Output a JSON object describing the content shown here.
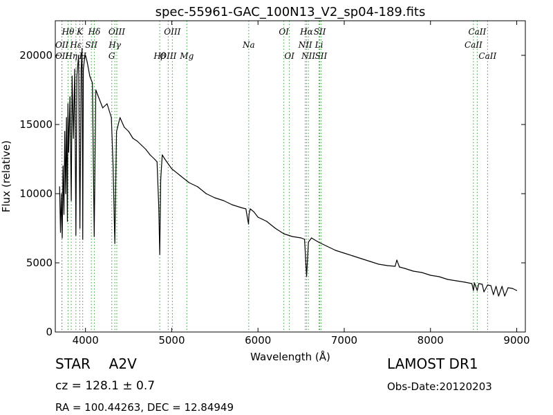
{
  "chart_data": {
    "type": "line",
    "title": "spec-55961-GAC_100N13_V2_sp04-189.fits",
    "xlabel": "Wavelength (Å)",
    "ylabel": "Flux (relative)",
    "xlim": [
      3650,
      9100
    ],
    "ylim": [
      0,
      22500
    ],
    "x_ticks": [
      4000,
      5000,
      6000,
      7000,
      8000,
      9000
    ],
    "y_ticks": [
      0,
      5000,
      10000,
      15000,
      20000
    ],
    "grid": false,
    "series": [
      {
        "color": "#000000",
        "x": [
          3700,
          3710,
          3720,
          3730,
          3740,
          3750,
          3760,
          3770,
          3780,
          3790,
          3797,
          3805,
          3820,
          3835,
          3845,
          3860,
          3875,
          3889,
          3900,
          3920,
          3935,
          3950,
          3960,
          3968,
          3975,
          3990,
          4000,
          4020,
          4050,
          4080,
          4101,
          4120,
          4150,
          4200,
          4250,
          4300,
          4320,
          4340,
          4360,
          4400,
          4450,
          4500,
          4550,
          4600,
          4650,
          4700,
          4750,
          4800,
          4830,
          4850,
          4861,
          4872,
          4890,
          4920,
          5000,
          5100,
          5200,
          5300,
          5400,
          5500,
          5600,
          5700,
          5800,
          5860,
          5890,
          5896,
          5910,
          5950,
          6000,
          6100,
          6200,
          6300,
          6400,
          6500,
          6540,
          6563,
          6585,
          6620,
          6700,
          6800,
          6900,
          7000,
          7100,
          7200,
          7300,
          7400,
          7500,
          7590,
          7610,
          7640,
          7700,
          7800,
          7900,
          8000,
          8100,
          8200,
          8300,
          8400,
          8480,
          8498,
          8510,
          8542,
          8560,
          8600,
          8620,
          8662,
          8700,
          8730,
          8760,
          8790,
          8830,
          8860,
          8900,
          8950,
          9000
        ],
        "y": [
          10500,
          7200,
          10000,
          6800,
          12000,
          8500,
          14500,
          10000,
          15500,
          8000,
          16500,
          13000,
          17000,
          9500,
          18500,
          14000,
          19000,
          7000,
          18500,
          20000,
          7500,
          19000,
          20500,
          6700,
          19000,
          19800,
          20000,
          19500,
          18500,
          18000,
          6900,
          17500,
          17000,
          16200,
          16500,
          15500,
          12000,
          6400,
          14500,
          15500,
          14800,
          14500,
          14000,
          13800,
          13500,
          13200,
          12800,
          12500,
          12300,
          9000,
          5600,
          11000,
          12800,
          12500,
          11800,
          11300,
          10800,
          10500,
          10000,
          9700,
          9500,
          9200,
          9000,
          8900,
          7800,
          8500,
          8900,
          8700,
          8300,
          8000,
          7500,
          7100,
          6900,
          6800,
          6700,
          4000,
          6500,
          6800,
          6500,
          6200,
          5900,
          5700,
          5500,
          5300,
          5100,
          4900,
          4800,
          4750,
          5200,
          4700,
          4600,
          4400,
          4300,
          4100,
          4000,
          3800,
          3700,
          3600,
          3500,
          3000,
          3550,
          3000,
          3500,
          3450,
          2900,
          3400,
          3350,
          2700,
          3300,
          2600,
          3300,
          2600,
          3200,
          3150,
          3000
        ]
      }
    ],
    "lines_identified": [
      {
        "label": "Hθ",
        "x": 3798,
        "row": 0
      },
      {
        "label": "K",
        "x": 3934,
        "row": 0
      },
      {
        "label": "Hδ",
        "x": 4102,
        "row": 0
      },
      {
        "label": "OIII",
        "x": 4363,
        "row": 0
      },
      {
        "label": "OIII",
        "x": 5007,
        "row": 0
      },
      {
        "label": "OI",
        "x": 6300,
        "row": 0
      },
      {
        "label": "Hα",
        "x": 6563,
        "row": 0
      },
      {
        "label": "SII",
        "x": 6716,
        "row": 0
      },
      {
        "label": "CaII",
        "x": 8542,
        "row": 0
      },
      {
        "label": "OII",
        "x": 3727,
        "row": 1
      },
      {
        "label": "Hε",
        "x": 3889,
        "row": 1
      },
      {
        "label": "SII",
        "x": 4068,
        "row": 1
      },
      {
        "label": "Hγ",
        "x": 4340,
        "row": 1
      },
      {
        "label": "Na",
        "x": 5893,
        "row": 1
      },
      {
        "label": "NII",
        "x": 6548,
        "row": 1
      },
      {
        "label": "Li",
        "x": 6708,
        "row": 1
      },
      {
        "label": "CaII",
        "x": 8498,
        "row": 1
      },
      {
        "label": "OII",
        "x": 3727,
        "row": 2
      },
      {
        "label": "Hη",
        "x": 3835,
        "row": 2
      },
      {
        "label": "H",
        "x": 3968,
        "row": 2
      },
      {
        "label": "G",
        "x": 4305,
        "row": 2
      },
      {
        "label": "Hβ",
        "x": 4861,
        "row": 2
      },
      {
        "label": "OIII",
        "x": 4959,
        "row": 2
      },
      {
        "label": "Mg",
        "x": 5175,
        "row": 2
      },
      {
        "label": "OI",
        "x": 6364,
        "row": 2
      },
      {
        "label": "NII",
        "x": 6584,
        "row": 2
      },
      {
        "label": "SII",
        "x": 6731,
        "row": 2
      },
      {
        "label": "CaII",
        "x": 8662,
        "row": 2
      }
    ],
    "line_marker_color": "#2ca02c"
  },
  "info": {
    "class": "STAR",
    "subclass": "A2V",
    "survey": "LAMOST DR1",
    "cz": "cz = 128.1 ± 0.7",
    "obs_date": "Obs-Date:20120203",
    "coords": "RA = 100.44263, DEC = 12.84949"
  }
}
